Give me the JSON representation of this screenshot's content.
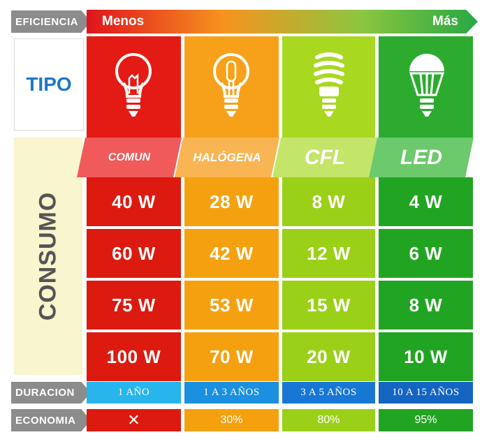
{
  "efficiency": {
    "tag": "EFICIENCIA",
    "less": "Menos",
    "more": "Más",
    "gradient": [
      "#e0131c",
      "#f7931e",
      "#8cc63f",
      "#27a844"
    ]
  },
  "tipo_label": "TIPO",
  "consumo_label": "CONSUMO",
  "types": [
    {
      "name": "COMUN",
      "icon": "incandescent-bulb-icon",
      "color": "#e31b14",
      "label_color": "#f05a5a",
      "cell_color": "#dc1a10"
    },
    {
      "name": "HALÓGENA",
      "icon": "halogen-bulb-icon",
      "color": "#f7a11a",
      "label_color": "#f9b553",
      "cell_color": "#f5a10f"
    },
    {
      "name": "CFL",
      "icon": "cfl-bulb-icon",
      "color": "#a8d81f",
      "label_color": "#c3e56a",
      "cell_color": "#9bd018"
    },
    {
      "name": "LED",
      "icon": "led-bulb-icon",
      "color": "#2cab2f",
      "label_color": "#6cc96c",
      "cell_color": "#22a423"
    }
  ],
  "consumption": [
    [
      "40 W",
      "28 W",
      "8 W",
      "4 W"
    ],
    [
      "60 W",
      "42 W",
      "12 W",
      "6 W"
    ],
    [
      "75 W",
      "53 W",
      "15 W",
      "8 W"
    ],
    [
      "100 W",
      "70 W",
      "20 W",
      "10 W"
    ]
  ],
  "duration": {
    "tag": "DURACION",
    "values": [
      "1 AÑO",
      "1 A 3 AÑOS",
      "3 A 5 AÑOS",
      "10 A 15 AÑOS"
    ],
    "colors": [
      "#27b5ec",
      "#1b8fe0",
      "#1877d4",
      "#1464c2"
    ]
  },
  "economy": {
    "tag": "ECONOMIA",
    "values": [
      "✕",
      "30%",
      "80%",
      "95%"
    ]
  }
}
